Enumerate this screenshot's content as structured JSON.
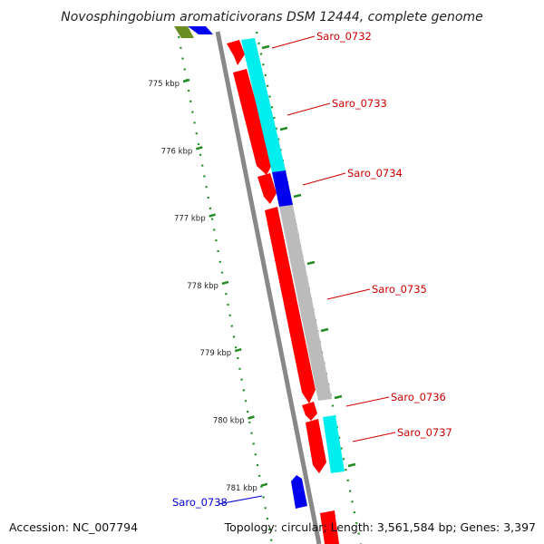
{
  "title": "Novosphingobium aromaticivorans DSM 12444, complete genome",
  "footer": {
    "accession": "Accession: NC_007794",
    "topology": "Topology: circular; Length: 3,561,584 bp; Genes: 3,397"
  },
  "ticks": [
    "775 kbp",
    "776 kbp",
    "777 kbp",
    "778 kbp",
    "779 kbp",
    "780 kbp",
    "781 kbp"
  ],
  "genes": [
    {
      "name": "Saro_0732",
      "color": "#cc0000"
    },
    {
      "name": "Saro_0733",
      "color": "#cc0000"
    },
    {
      "name": "Saro_0734",
      "color": "#cc0000"
    },
    {
      "name": "Saro_0735",
      "color": "#cc0000"
    },
    {
      "name": "Saro_0736",
      "color": "#cc0000"
    },
    {
      "name": "Saro_0737",
      "color": "#cc0000"
    },
    {
      "name": "Saro_0738",
      "color": "#0000cc"
    }
  ],
  "colors": {
    "forward": "#ff0000",
    "cyan": "#00eeee",
    "blue": "#0000ee",
    "gray": "#bbbbbb",
    "olive": "#6b8e23",
    "backbone": "#808080",
    "tick": "#228b22"
  }
}
